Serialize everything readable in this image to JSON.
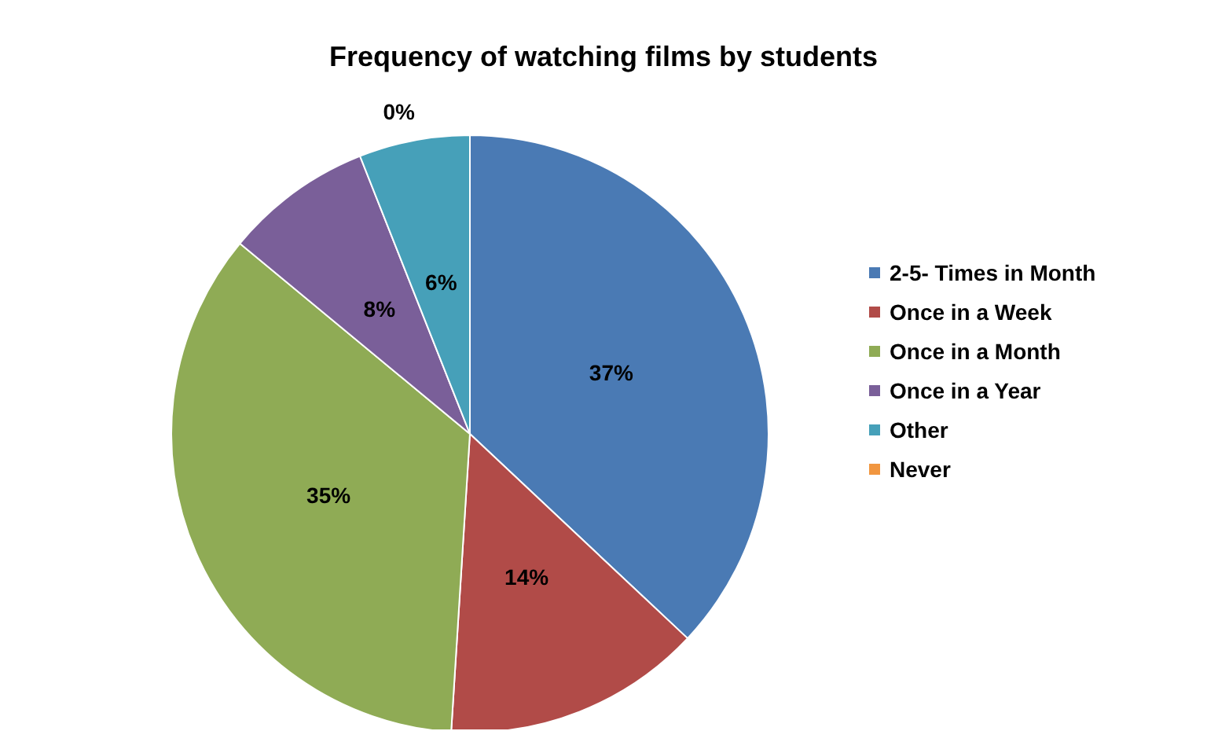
{
  "chart_data": {
    "type": "pie",
    "title": "Frequency of watching films by students",
    "categories": [
      "2-5- Times in Month",
      "Once in a Week",
      "Once in a Month",
      "Once in a Year",
      "Other",
      "Never"
    ],
    "values": [
      37,
      14,
      35,
      8,
      6,
      0
    ],
    "value_labels": [
      "37%",
      "14%",
      "35%",
      "8%",
      "6%",
      "0%"
    ],
    "colors": [
      "#4a7ab4",
      "#b14b48",
      "#8fab55",
      "#7a5f99",
      "#46a0b9",
      "#f19640"
    ],
    "legend": "right"
  }
}
